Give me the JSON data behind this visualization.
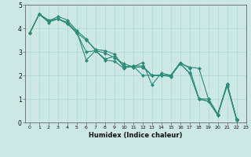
{
  "xlabel": "Humidex (Indice chaleur)",
  "background_color": "#cce8e4",
  "line_color": "#2e8b7a",
  "grid_color": "#b0d8d0",
  "xlim": [
    -0.5,
    23
  ],
  "ylim": [
    0,
    5
  ],
  "yticks": [
    0,
    1,
    2,
    3,
    4,
    5
  ],
  "xticks": [
    0,
    1,
    2,
    3,
    4,
    5,
    6,
    7,
    8,
    9,
    10,
    11,
    12,
    13,
    14,
    15,
    16,
    17,
    18,
    19,
    20,
    21,
    22,
    23
  ],
  "series": [
    [
      3.8,
      4.6,
      4.35,
      4.4,
      4.2,
      3.8,
      3.5,
      3.1,
      3.05,
      2.9,
      2.35,
      2.4,
      2.0,
      2.0,
      2.0,
      1.95,
      2.5,
      2.35,
      2.3,
      1.0,
      0.35,
      1.6,
      0.15
    ],
    [
      3.8,
      4.6,
      4.3,
      4.5,
      4.35,
      3.9,
      3.55,
      3.05,
      2.95,
      2.75,
      2.5,
      2.35,
      2.55,
      1.6,
      2.1,
      2.0,
      2.5,
      2.1,
      1.0,
      0.9,
      0.35,
      1.65,
      0.15
    ],
    [
      3.8,
      4.6,
      4.25,
      4.4,
      4.25,
      3.85,
      2.65,
      3.05,
      2.65,
      2.6,
      2.3,
      2.4,
      2.4,
      2.0,
      2.0,
      2.0,
      2.55,
      2.3,
      1.0,
      0.9,
      0.3,
      1.65,
      0.1
    ],
    [
      3.8,
      4.6,
      4.3,
      4.4,
      4.2,
      3.8,
      3.0,
      3.05,
      2.7,
      2.8,
      2.4,
      2.35,
      2.35,
      2.0,
      2.0,
      2.0,
      2.5,
      2.1,
      1.0,
      1.0,
      0.35,
      1.55,
      0.1
    ]
  ],
  "marker": "D",
  "marker_size": 2.0,
  "line_width": 0.8
}
